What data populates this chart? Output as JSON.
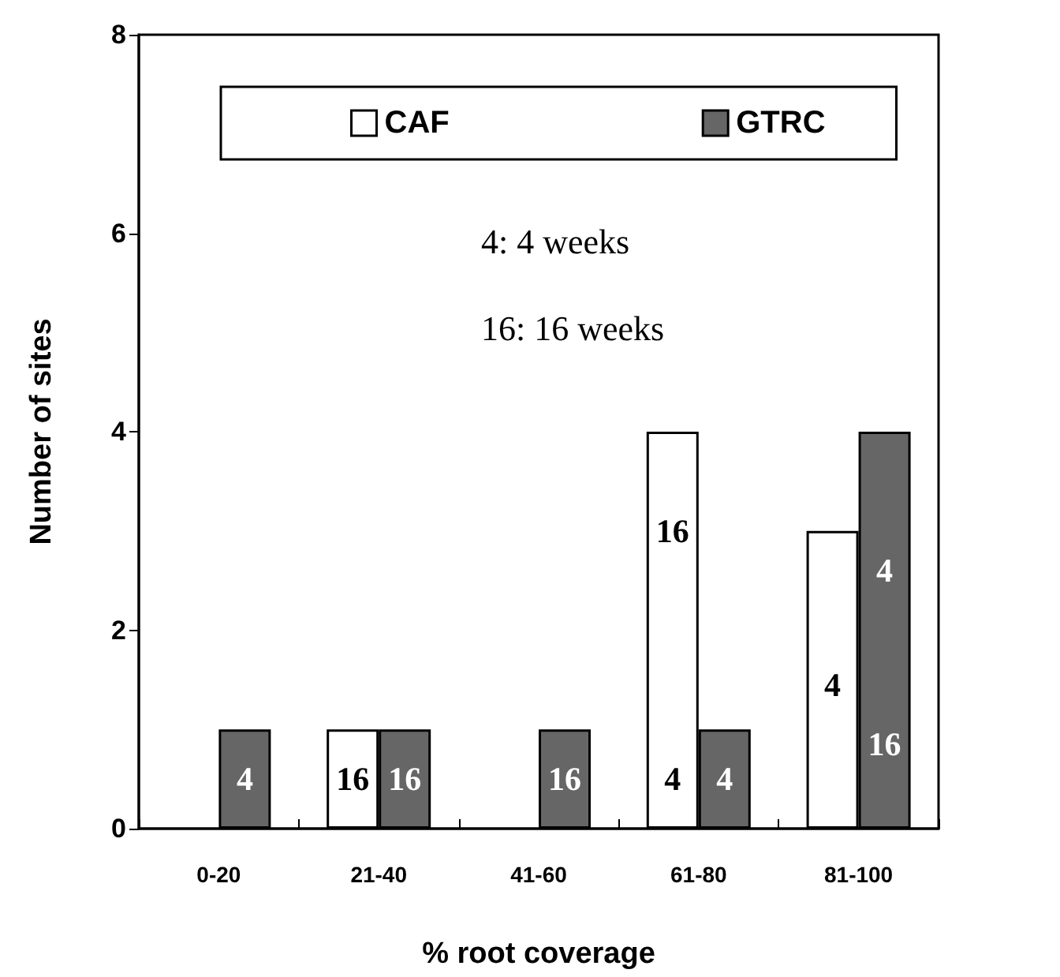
{
  "chart_data": {
    "type": "bar",
    "xlabel": "% root coverage",
    "ylabel": "Number of sites",
    "categories": [
      "0-20",
      "21-40",
      "41-60",
      "61-80",
      "81-100"
    ],
    "series": [
      {
        "name": "CAF",
        "color": "#ffffff",
        "values": [
          null,
          1,
          null,
          4,
          3
        ]
      },
      {
        "name": "GTRC",
        "color": "#666666",
        "values": [
          1,
          1,
          1,
          1,
          4
        ]
      }
    ],
    "ylim": [
      0,
      8
    ],
    "yticks": [
      0,
      2,
      4,
      6,
      8
    ],
    "grid": false,
    "legend": "top",
    "annotations": [
      "4: 4 weeks",
      "16: 16 weeks",
      {
        "text": "4",
        "x": "0-20",
        "y": 0.5
      },
      {
        "text": "16",
        "x": "21-40",
        "y": 0.5
      },
      {
        "text": "16",
        "x": "21-40",
        "y": 0.5
      },
      {
        "text": "16",
        "x": "41-60",
        "y": 0.5
      },
      {
        "text": "16",
        "x": "61-80",
        "y": 3
      },
      {
        "text": "4",
        "x": "61-80",
        "y": 0.5
      },
      {
        "text": "4",
        "x": "61-80",
        "y": 0.5
      },
      {
        "text": "4",
        "x": "81-100",
        "y": 2.6
      },
      {
        "text": "4",
        "x": "81-100",
        "y": 1.45
      },
      {
        "text": "16",
        "x": "81-100",
        "y": 0.85
      }
    ]
  }
}
